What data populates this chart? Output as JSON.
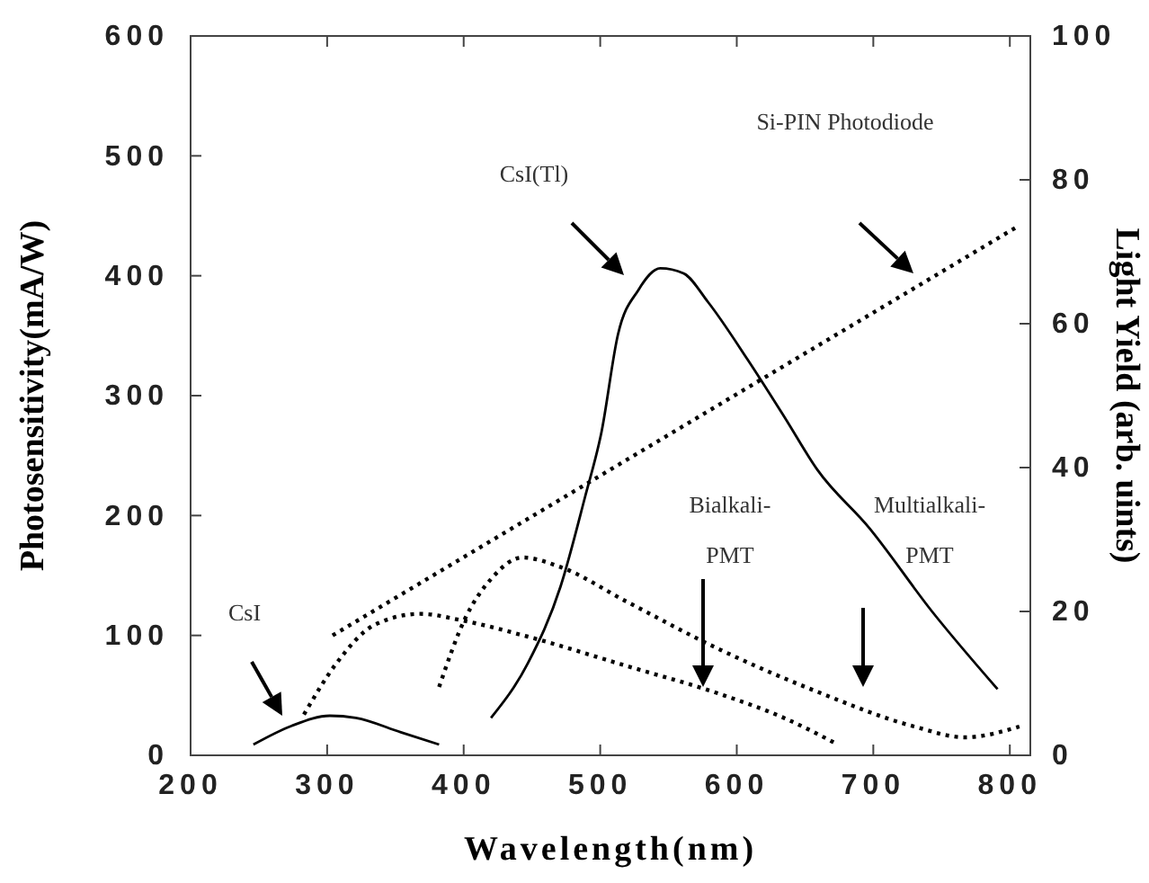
{
  "chart_data": {
    "type": "line",
    "xlabel": "Wavelength(nm)",
    "ylabel": "Photosensitivity(mA/W)",
    "y2label": "Light Yield (arb. uints)",
    "xlim": [
      200,
      815
    ],
    "xticks": [
      200,
      300,
      400,
      500,
      600,
      700,
      800
    ],
    "ylim": [
      0,
      600
    ],
    "yticks": [
      0,
      100,
      200,
      300,
      400,
      500,
      600
    ],
    "y2lim": [
      0,
      100
    ],
    "y2ticks": [
      0,
      20,
      40,
      60,
      80,
      100
    ],
    "grid": false,
    "annotations": [
      "CsI",
      "CsI(Tl)",
      "Si-PIN Photodiode",
      "Bialkali-PMT",
      "Multialkali-PMT"
    ],
    "series": [
      {
        "color": "#000000",
        "axis": "y2",
        "line_style": "solid",
        "x": [
          246,
          274,
          302,
          321,
          354,
          382
        ],
        "values": [
          1.5,
          4.1,
          5.5,
          5.2,
          3.2,
          1.5
        ]
      },
      {
        "color": "#000000",
        "axis": "y2",
        "line_style": "solid",
        "x": [
          420,
          447,
          471,
          489,
          501,
          513,
          528,
          544,
          561,
          579,
          608,
          635,
          659,
          697,
          743,
          791
        ],
        "values": [
          5.2,
          12.8,
          23.5,
          36,
          45,
          58.5,
          64.7,
          67.7,
          67,
          63,
          55,
          47,
          39.7,
          31.6,
          20,
          9.2
        ]
      },
      {
        "color": "#000000",
        "axis": "y",
        "line_style": "dotted",
        "x": [
          304,
          807
        ],
        "values": [
          100,
          442
        ]
      },
      {
        "color": "#000000",
        "axis": "y",
        "line_style": "dotted",
        "x": [
          283,
          307,
          335,
          368,
          401,
          447,
          518,
          588,
          635,
          674
        ],
        "values": [
          34,
          77,
          109,
          118,
          112,
          99,
          75,
          51,
          31,
          9
        ]
      },
      {
        "color": "#000000",
        "axis": "y",
        "line_style": "dotted",
        "x": [
          382,
          401,
          420,
          443,
          471,
          518,
          588,
          659,
          730,
          767,
          807
        ],
        "values": [
          57,
          114,
          147,
          165,
          157,
          129,
          88,
          53,
          24,
          15,
          24
        ]
      }
    ]
  }
}
